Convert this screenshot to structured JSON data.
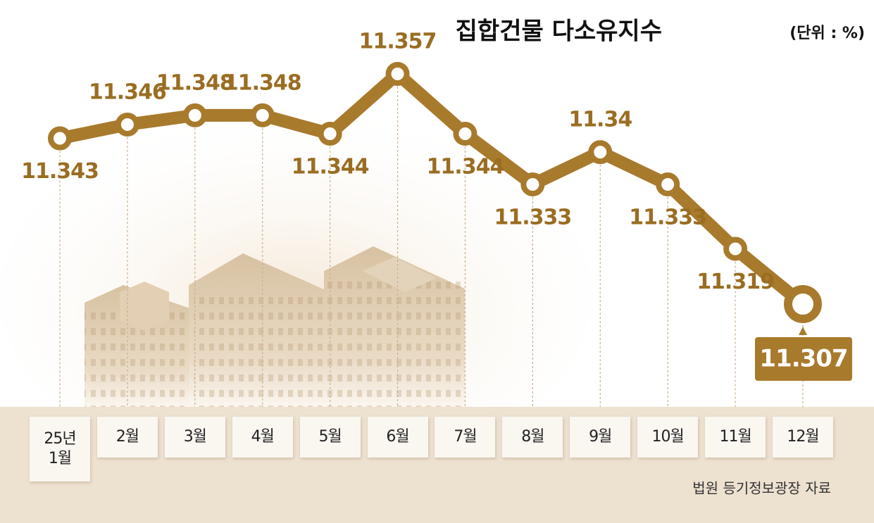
{
  "chart_data": {
    "type": "line",
    "title": "집합건물 다소유지수",
    "subtitle": "(단위 : %)",
    "categories": [
      "25년\n1월",
      "2월",
      "3월",
      "4월",
      "5월",
      "6월",
      "7월",
      "8월",
      "9월",
      "10월",
      "11월",
      "12월"
    ],
    "values": [
      11.343,
      11.346,
      11.348,
      11.348,
      11.344,
      11.357,
      11.344,
      11.333,
      11.34,
      11.333,
      11.319,
      11.307
    ],
    "color": "#a87a2c",
    "source": "법원 등기정보광장 자료"
  }
}
